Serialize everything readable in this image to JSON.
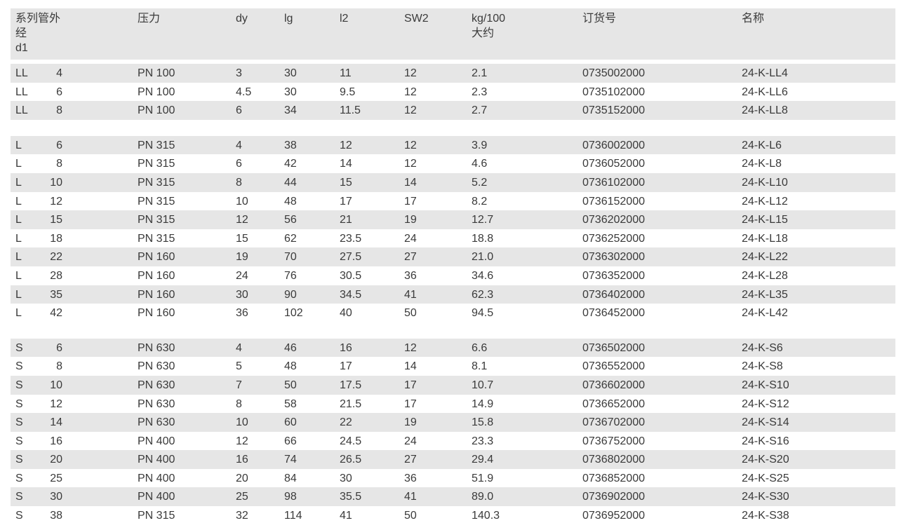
{
  "headers": [
    "系列管外\n经\nd1",
    "压力",
    "dy",
    "lg",
    "l2",
    "SW2",
    "kg/100\n大约",
    "订货号",
    "名称"
  ],
  "groups": [
    [
      [
        "LL",
        "4",
        "PN 100",
        "3",
        "30",
        "11",
        "12",
        "2.1",
        "0735002000",
        "24-K-LL4"
      ],
      [
        "LL",
        "6",
        "PN 100",
        "4.5",
        "30",
        "9.5",
        "12",
        "2.3",
        "0735102000",
        "24-K-LL6"
      ],
      [
        "LL",
        "8",
        "PN 100",
        "6",
        "34",
        "11.5",
        "12",
        "2.7",
        "0735152000",
        "24-K-LL8"
      ]
    ],
    [
      [
        "L",
        "6",
        "PN 315",
        "4",
        "38",
        "12",
        "12",
        "3.9",
        "0736002000",
        "24-K-L6"
      ],
      [
        "L",
        "8",
        "PN 315",
        "6",
        "42",
        "14",
        "12",
        "4.6",
        "0736052000",
        "24-K-L8"
      ],
      [
        "L",
        "10",
        "PN 315",
        "8",
        "44",
        "15",
        "14",
        "5.2",
        "0736102000",
        "24-K-L10"
      ],
      [
        "L",
        "12",
        "PN 315",
        "10",
        "48",
        "17",
        "17",
        "8.2",
        "0736152000",
        "24-K-L12"
      ],
      [
        "L",
        "15",
        "PN 315",
        "12",
        "56",
        "21",
        "19",
        "12.7",
        "0736202000",
        "24-K-L15"
      ],
      [
        "L",
        "18",
        "PN 315",
        "15",
        "62",
        "23.5",
        "24",
        "18.8",
        "0736252000",
        "24-K-L18"
      ],
      [
        "L",
        "22",
        "PN 160",
        "19",
        "70",
        "27.5",
        "27",
        "21.0",
        "0736302000",
        "24-K-L22"
      ],
      [
        "L",
        "28",
        "PN 160",
        "24",
        "76",
        "30.5",
        "36",
        "34.6",
        "0736352000",
        "24-K-L28"
      ],
      [
        "L",
        "35",
        "PN 160",
        "30",
        "90",
        "34.5",
        "41",
        "62.3",
        "0736402000",
        "24-K-L35"
      ],
      [
        "L",
        "42",
        "PN 160",
        "36",
        "102",
        "40",
        "50",
        "94.5",
        "0736452000",
        "24-K-L42"
      ]
    ],
    [
      [
        "S",
        "6",
        "PN 630",
        "4",
        "46",
        "16",
        "12",
        "6.6",
        "0736502000",
        "24-K-S6"
      ],
      [
        "S",
        "8",
        "PN 630",
        "5",
        "48",
        "17",
        "14",
        "8.1",
        "0736552000",
        "24-K-S8"
      ],
      [
        "S",
        "10",
        "PN 630",
        "7",
        "50",
        "17.5",
        "17",
        "10.7",
        "0736602000",
        "24-K-S10"
      ],
      [
        "S",
        "12",
        "PN 630",
        "8",
        "58",
        "21.5",
        "17",
        "14.9",
        "0736652000",
        "24-K-S12"
      ],
      [
        "S",
        "14",
        "PN 630",
        "10",
        "60",
        "22",
        "19",
        "15.8",
        "0736702000",
        "24-K-S14"
      ],
      [
        "S",
        "16",
        "PN 400",
        "12",
        "66",
        "24.5",
        "24",
        "23.3",
        "0736752000",
        "24-K-S16"
      ],
      [
        "S",
        "20",
        "PN 400",
        "16",
        "74",
        "26.5",
        "27",
        "29.4",
        "0736802000",
        "24-K-S20"
      ],
      [
        "S",
        "25",
        "PN 400",
        "20",
        "84",
        "30",
        "36",
        "51.9",
        "0736852000",
        "24-K-S25"
      ],
      [
        "S",
        "30",
        "PN 400",
        "25",
        "98",
        "35.5",
        "41",
        "89.0",
        "0736902000",
        "24-K-S30"
      ],
      [
        "S",
        "38",
        "PN 315",
        "32",
        "114",
        "41",
        "50",
        "140.3",
        "0736952000",
        "24-K-S38"
      ]
    ]
  ],
  "colors": {
    "stripe": "#e6e6e6",
    "text": "#3a3a3a"
  }
}
